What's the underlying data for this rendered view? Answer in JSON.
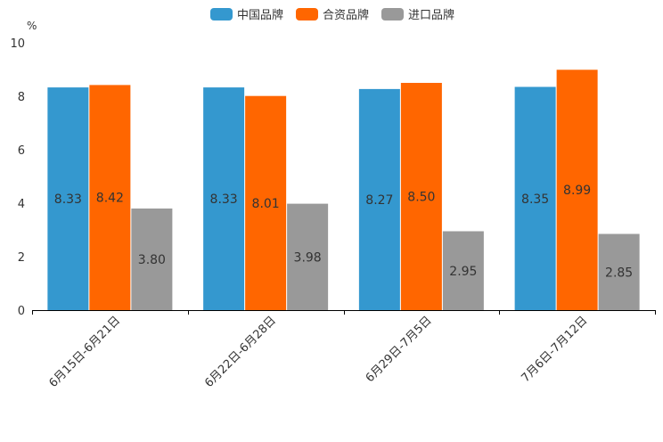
{
  "chart_data": {
    "type": "bar",
    "title": "",
    "unit_label": "%",
    "xlabel": "",
    "ylabel": "%",
    "ylim": [
      0,
      10
    ],
    "yticks": [
      0,
      2,
      4,
      6,
      8,
      10
    ],
    "legend_position": "top-center",
    "grid": false,
    "categories": [
      "6月15日-6月21日",
      "6月22日-6月28日",
      "6月29日-7月5日",
      "7月6日-7月12日"
    ],
    "series": [
      {
        "name": "中国品牌",
        "color": "#3498cf",
        "values": [
          8.33,
          8.33,
          8.27,
          8.35
        ],
        "labels": [
          "8.33",
          "8.33",
          "8.27",
          "8.35"
        ]
      },
      {
        "name": "合资品牌",
        "color": "#ff6600",
        "values": [
          8.42,
          8.01,
          8.5,
          8.99
        ],
        "labels": [
          "8.42",
          "8.01",
          "8.50",
          "8.99"
        ]
      },
      {
        "name": "进口品牌",
        "color": "#999999",
        "values": [
          3.8,
          3.98,
          2.95,
          2.85
        ],
        "labels": [
          "3.80",
          "3.98",
          "2.95",
          "2.85"
        ]
      }
    ]
  }
}
